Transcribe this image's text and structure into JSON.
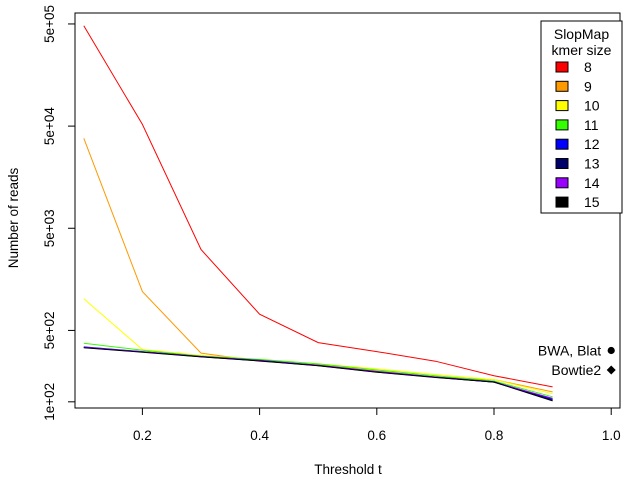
{
  "chart_data": {
    "type": "line",
    "title": "",
    "xlabel": "Threshold t",
    "ylabel": "Number of reads",
    "x_scale": "linear",
    "y_scale": "log",
    "xlim": [
      0.085,
      1.015
    ],
    "ylim": [
      87,
      640000
    ],
    "x_ticks": [
      0.2,
      0.4,
      0.6,
      0.8,
      1.0
    ],
    "x_tick_labels": [
      "0.2",
      "0.4",
      "0.6",
      "0.8",
      "1.0"
    ],
    "y_ticks": [
      100,
      500,
      5000,
      50000,
      500000
    ],
    "y_tick_labels": [
      "1e+02",
      "5e+02",
      "5e+03",
      "5e+04",
      "5e+05"
    ],
    "x": [
      0.1,
      0.2,
      0.3,
      0.4,
      0.5,
      0.6,
      0.7,
      0.8,
      0.9
    ],
    "series": [
      {
        "name": "8",
        "color": "#ff0000",
        "values": [
          480000,
          52000,
          3100,
          720,
          380,
          310,
          250,
          180,
          140
        ]
      },
      {
        "name": "9",
        "color": "#ff9900",
        "values": [
          38000,
          1200,
          300,
          250,
          230,
          200,
          175,
          165,
          125
        ]
      },
      {
        "name": "10",
        "color": "#ffff00",
        "values": [
          1020,
          325,
          285,
          260,
          235,
          210,
          185,
          165,
          120
        ]
      },
      {
        "name": "11",
        "color": "#33ff00",
        "values": [
          375,
          320,
          280,
          260,
          235,
          205,
          180,
          160,
          112
        ]
      },
      {
        "name": "12",
        "color": "#0000ff",
        "values": [
          345,
          310,
          278,
          255,
          228,
          198,
          175,
          157,
          106
        ]
      },
      {
        "name": "13",
        "color": "#00006b",
        "values": [
          340,
          308,
          276,
          252,
          226,
          196,
          174,
          156,
          104
        ]
      },
      {
        "name": "14",
        "color": "#9900ff",
        "values": [
          342,
          309,
          277,
          253,
          227,
          197,
          174,
          156,
          108
        ]
      },
      {
        "name": "15",
        "color": "#000000",
        "values": [
          338,
          306,
          275,
          251,
          225,
          195,
          173,
          156,
          102
        ]
      }
    ],
    "legend": {
      "title_line1": "SlopMap",
      "title_line2": "kmer size",
      "placement": "top-right"
    },
    "annotations": [
      {
        "label": "BWA, Blat",
        "x": 1.0,
        "y": 318,
        "marker": "circle"
      },
      {
        "label": "Bowtie2",
        "x": 1.0,
        "y": 205,
        "marker": "diamond"
      }
    ]
  }
}
